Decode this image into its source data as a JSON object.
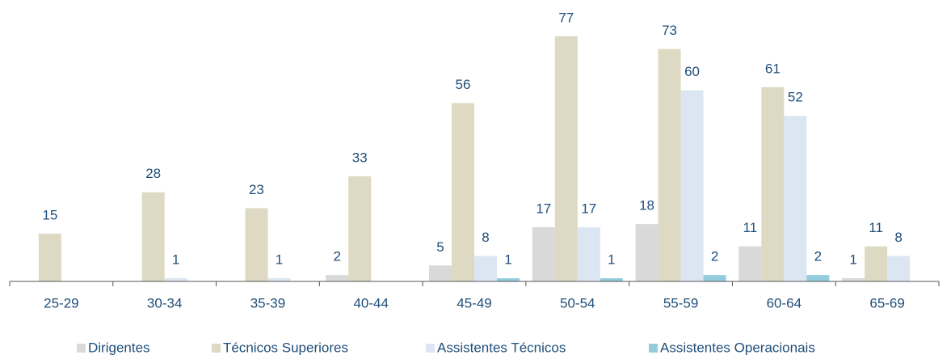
{
  "chart_data": {
    "type": "bar",
    "categories": [
      "25-29",
      "30-34",
      "35-39",
      "40-44",
      "45-49",
      "50-54",
      "55-59",
      "60-64",
      "65-69"
    ],
    "series": [
      {
        "name": "Dirigentes",
        "color": "#d9d9d9",
        "values": [
          null,
          null,
          null,
          2,
          5,
          17,
          18,
          11,
          1
        ]
      },
      {
        "name": "Técnicos Superiores",
        "color": "#ddd9c3",
        "values": [
          15,
          28,
          23,
          33,
          56,
          77,
          73,
          61,
          11
        ]
      },
      {
        "name": "Assistentes Técnicos",
        "color": "#dce6f2",
        "values": [
          null,
          1,
          1,
          null,
          8,
          17,
          60,
          52,
          8
        ]
      },
      {
        "name": "Assistentes Operacionais",
        "color": "#93cddd",
        "values": [
          null,
          null,
          null,
          null,
          1,
          1,
          2,
          2,
          null
        ]
      }
    ],
    "ylim": [
      0,
      80
    ],
    "legend": "bottom"
  }
}
